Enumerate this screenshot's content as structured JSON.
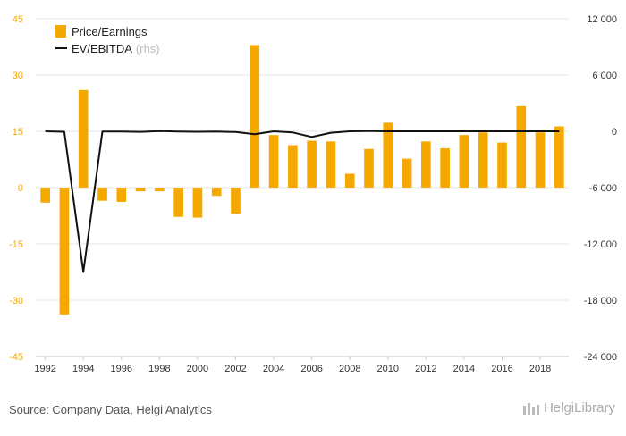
{
  "chart_data": {
    "type": "bar",
    "years": [
      1992,
      1993,
      1994,
      1995,
      1996,
      1997,
      1998,
      1999,
      2000,
      2001,
      2002,
      2003,
      2004,
      2005,
      2006,
      2007,
      2008,
      2009,
      2010,
      2011,
      2012,
      2013,
      2014,
      2015,
      2016,
      2017,
      2018,
      2019
    ],
    "x_tick_labels": [
      "1992",
      "1994",
      "1996",
      "1998",
      "2000",
      "2002",
      "2004",
      "2006",
      "2008",
      "2010",
      "2012",
      "2014",
      "2016",
      "2018"
    ],
    "series": [
      {
        "name": "Price/Earnings",
        "type": "bar",
        "axis": "left",
        "color": "#F5A800",
        "values": [
          -4.0,
          -34.0,
          26.0,
          -3.5,
          -3.8,
          -1.0,
          -1.0,
          -7.8,
          -8.0,
          -2.2,
          -7.0,
          38.0,
          14.0,
          11.3,
          12.5,
          12.3,
          3.7,
          10.3,
          17.3,
          7.7,
          12.3,
          10.5,
          14.0,
          14.7,
          12.0,
          21.7,
          14.7,
          16.3
        ]
      },
      {
        "name": "EV/EBITDA",
        "name_suffix": "(rhs)",
        "type": "line",
        "axis": "right",
        "color": "#111111",
        "values": [
          0,
          -50,
          -15000,
          -20,
          -30,
          -60,
          20,
          -20,
          -50,
          -30,
          -80,
          -300,
          0,
          -120,
          -600,
          -150,
          0,
          20,
          0,
          0,
          0,
          0,
          0,
          0,
          0,
          0,
          0,
          0
        ]
      }
    ],
    "y_left": {
      "min": -45,
      "max": 45,
      "ticks": [
        -45,
        -30,
        -15,
        0,
        15,
        30,
        45
      ],
      "tick_labels": [
        "-45",
        "-30",
        "-15",
        "0",
        "15",
        "30",
        "45"
      ],
      "tick_color": "#F5A800"
    },
    "y_right": {
      "min": -24000,
      "max": 12000,
      "ticks": [
        -24000,
        -18000,
        -12000,
        -6000,
        0,
        6000,
        12000
      ],
      "tick_labels": [
        "-24 000",
        "-18 000",
        "-12 000",
        "-6 000",
        "0",
        "6 000",
        "12 000"
      ]
    },
    "grid": true,
    "legend": "top-left"
  },
  "footer": {
    "source": "Source: Company Data, Helgi Analytics",
    "brand": "HelgiLibrary"
  }
}
